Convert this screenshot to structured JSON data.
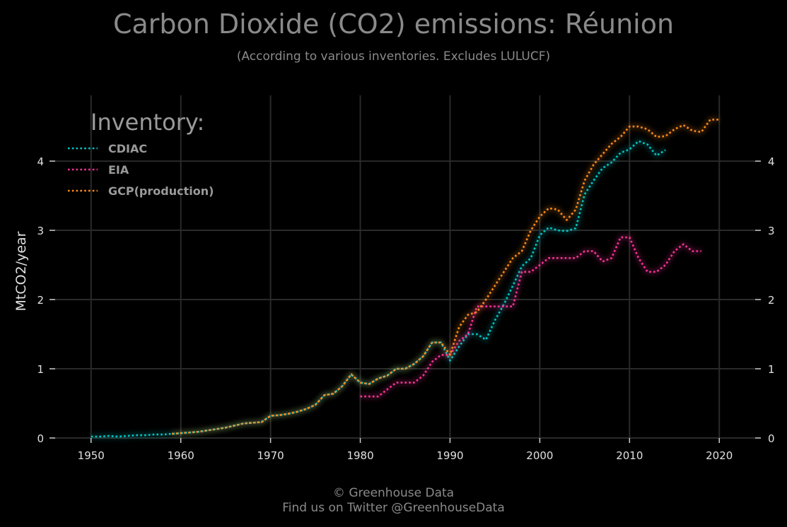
{
  "header": {
    "title": "Carbon Dioxide (CO2) emissions: Réunion",
    "subtitle": "(According to various inventories. Excludes LULUCF)"
  },
  "footer": {
    "line1": "© Greenhouse Data",
    "line2": "Find us on Twitter @GreenhouseData"
  },
  "chart_data": {
    "type": "line",
    "title": "Carbon Dioxide (CO2) emissions: Réunion",
    "subtitle": "(According to various inventories. Excludes LULUCF)",
    "xlabel": "",
    "ylabel": "MtCO2/year",
    "xlim": [
      1946,
      2024
    ],
    "ylim": [
      0,
      4.95
    ],
    "x_ticks": [
      1950,
      1960,
      1970,
      1980,
      1990,
      2000,
      2010,
      2020
    ],
    "y_ticks": [
      0,
      1,
      2,
      3,
      4
    ],
    "grid": true,
    "legend_title": "Inventory:",
    "legend_position": "top-left",
    "colors": {
      "CDIAC": "#00c8c8",
      "EIA": "#ff3399",
      "GCP(production)": "#ff8c1a",
      "background": "#000000",
      "grid": "#2a2a2a"
    },
    "series": [
      {
        "name": "CDIAC",
        "x": [
          1950,
          1951,
          1952,
          1953,
          1954,
          1955,
          1956,
          1957,
          1958,
          1959,
          1960,
          1961,
          1962,
          1963,
          1964,
          1965,
          1966,
          1967,
          1968,
          1969,
          1970,
          1971,
          1972,
          1973,
          1974,
          1975,
          1976,
          1977,
          1978,
          1979,
          1980,
          1981,
          1982,
          1983,
          1984,
          1985,
          1986,
          1987,
          1988,
          1989,
          1990,
          1991,
          1992,
          1993,
          1994,
          1995,
          1996,
          1997,
          1998,
          1999,
          2000,
          2001,
          2002,
          2003,
          2004,
          2005,
          2006,
          2007,
          2008,
          2009,
          2010,
          2011,
          2012,
          2013,
          2014
        ],
        "values": [
          0.02,
          0.02,
          0.03,
          0.02,
          0.03,
          0.04,
          0.04,
          0.05,
          0.05,
          0.06,
          0.07,
          0.08,
          0.09,
          0.11,
          0.13,
          0.15,
          0.18,
          0.21,
          0.22,
          0.23,
          0.32,
          0.33,
          0.35,
          0.38,
          0.42,
          0.48,
          0.62,
          0.64,
          0.75,
          0.92,
          0.8,
          0.78,
          0.86,
          0.9,
          1.0,
          1.0,
          1.07,
          1.18,
          1.38,
          1.38,
          1.12,
          1.32,
          1.5,
          1.5,
          1.42,
          1.7,
          1.93,
          2.2,
          2.48,
          2.6,
          2.93,
          3.04,
          3.0,
          2.99,
          3.03,
          3.52,
          3.72,
          3.9,
          3.98,
          4.12,
          4.17,
          4.29,
          4.24,
          4.08,
          4.16
        ]
      },
      {
        "name": "EIA",
        "x": [
          1980,
          1981,
          1982,
          1983,
          1984,
          1985,
          1986,
          1987,
          1988,
          1989,
          1990,
          1991,
          1992,
          1993,
          1994,
          1995,
          1996,
          1997,
          1998,
          1999,
          2000,
          2001,
          2002,
          2003,
          2004,
          2005,
          2006,
          2007,
          2008,
          2009,
          2010,
          2011,
          2012,
          2013,
          2014,
          2015,
          2016,
          2017,
          2018
        ],
        "values": [
          0.6,
          0.6,
          0.6,
          0.7,
          0.8,
          0.8,
          0.8,
          0.9,
          1.1,
          1.2,
          1.2,
          1.4,
          1.5,
          1.9,
          1.9,
          1.9,
          1.9,
          1.9,
          2.4,
          2.4,
          2.5,
          2.6,
          2.6,
          2.6,
          2.6,
          2.7,
          2.7,
          2.55,
          2.6,
          2.9,
          2.9,
          2.6,
          2.4,
          2.4,
          2.5,
          2.7,
          2.8,
          2.7,
          2.7
        ]
      },
      {
        "name": "GCP(production)",
        "x": [
          1959,
          1960,
          1961,
          1962,
          1963,
          1964,
          1965,
          1966,
          1967,
          1968,
          1969,
          1970,
          1971,
          1972,
          1973,
          1974,
          1975,
          1976,
          1977,
          1978,
          1979,
          1980,
          1981,
          1982,
          1983,
          1984,
          1985,
          1986,
          1987,
          1988,
          1989,
          1990,
          1991,
          1992,
          1993,
          1994,
          1995,
          1996,
          1997,
          1998,
          1999,
          2000,
          2001,
          2002,
          2003,
          2004,
          2005,
          2006,
          2007,
          2008,
          2009,
          2010,
          2011,
          2012,
          2013,
          2014,
          2015,
          2016,
          2017,
          2018,
          2019,
          2020
        ],
        "values": [
          0.06,
          0.07,
          0.08,
          0.09,
          0.11,
          0.13,
          0.15,
          0.18,
          0.21,
          0.22,
          0.23,
          0.32,
          0.33,
          0.35,
          0.38,
          0.42,
          0.48,
          0.62,
          0.64,
          0.75,
          0.92,
          0.8,
          0.78,
          0.86,
          0.9,
          1.0,
          1.0,
          1.07,
          1.18,
          1.38,
          1.38,
          1.2,
          1.6,
          1.78,
          1.82,
          2.0,
          2.2,
          2.4,
          2.6,
          2.7,
          3.0,
          3.2,
          3.32,
          3.3,
          3.15,
          3.3,
          3.72,
          3.95,
          4.1,
          4.25,
          4.35,
          4.5,
          4.5,
          4.46,
          4.35,
          4.36,
          4.46,
          4.52,
          4.44,
          4.42,
          4.6,
          4.6
        ]
      }
    ]
  }
}
